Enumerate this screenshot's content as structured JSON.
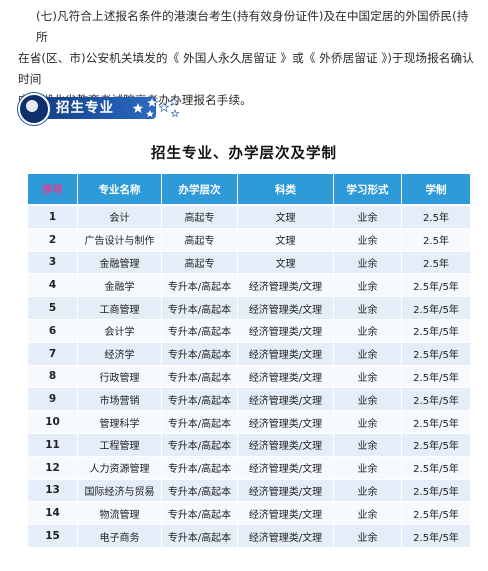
{
  "intro": {
    "line1": "(七)凡符合上述报名条件的港澳台考生(持有效身份证件)及在中国定居的外国侨民(持所",
    "line2": "在省(区、市)公安机关填发的《 外国人永久居留证 》或《 外侨居留证 》)于现场报名确认时间",
    "line3": "内到湖北省教育考试院高考办办理报名手续。"
  },
  "section": {
    "label": "招生专业",
    "icon": "star-cluster-icon"
  },
  "table": {
    "title": "招生专业、办学层次及学制",
    "headers": [
      "序号",
      "专业名称",
      "办学层次",
      "科类",
      "学习形式",
      "学制"
    ],
    "rows": [
      [
        "1",
        "会计",
        "高起专",
        "文理",
        "业余",
        "2.5年"
      ],
      [
        "2",
        "广告设计与制作",
        "高起专",
        "文理",
        "业余",
        "2.5年"
      ],
      [
        "3",
        "金融管理",
        "高起专",
        "文理",
        "业余",
        "2.5年"
      ],
      [
        "4",
        "金融学",
        "专升本/高起本",
        "经济管理类/文理",
        "业余",
        "2.5年/5年"
      ],
      [
        "5",
        "工商管理",
        "专升本/高起本",
        "经济管理类/文理",
        "业余",
        "2.5年/5年"
      ],
      [
        "6",
        "会计学",
        "专升本/高起本",
        "经济管理类/文理",
        "业余",
        "2.5年/5年"
      ],
      [
        "7",
        "经济学",
        "专升本/高起本",
        "经济管理类/文理",
        "业余",
        "2.5年/5年"
      ],
      [
        "8",
        "行政管理",
        "专升本/高起本",
        "经济管理类/文理",
        "业余",
        "2.5年/5年"
      ],
      [
        "9",
        "市场营销",
        "专升本/高起本",
        "经济管理类/文理",
        "业余",
        "2.5年/5年"
      ],
      [
        "10",
        "管理科学",
        "专升本/高起本",
        "经济管理类/文理",
        "业余",
        "2.5年/5年"
      ],
      [
        "11",
        "工程管理",
        "专升本/高起本",
        "经济管理类/文理",
        "业余",
        "2.5年/5年"
      ],
      [
        "12",
        "人力资源管理",
        "专升本/高起本",
        "经济管理类/文理",
        "业余",
        "2.5年/5年"
      ],
      [
        "13",
        "国际经济与贸易",
        "专升本/高起本",
        "经济管理类/文理",
        "业余",
        "2.5年/5年"
      ],
      [
        "14",
        "物流管理",
        "专升本/高起本",
        "经济管理类/文理",
        "业余",
        "2.5年/5年"
      ],
      [
        "15",
        "电子商务",
        "专升本/高起本",
        "经济管理类/文理",
        "业余",
        "2.5年/5年"
      ]
    ]
  },
  "colors": {
    "header_bg": "#2e9ad7",
    "header_first_col_text": "#e93a8e",
    "row_odd": "#e4edf8",
    "row_even": "#f6f9fd",
    "badge_dark": "#143a7a"
  }
}
